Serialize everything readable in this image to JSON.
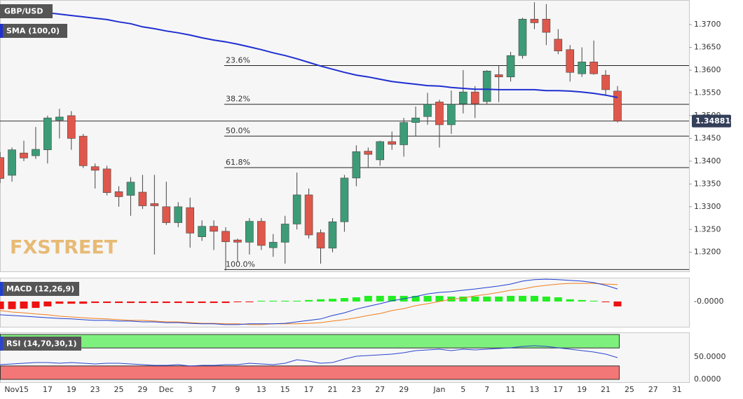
{
  "chart_data": {
    "type": "candlestick",
    "symbol": "GBP/USD",
    "watermark": "FXSTREET",
    "categories": [
      null,
      "Nov",
      "15",
      null,
      "17",
      null,
      "19",
      null,
      "23",
      null,
      "25",
      null,
      "29",
      null,
      "Dec",
      null,
      "3",
      null,
      "7",
      null,
      "9",
      null,
      "13",
      null,
      "15",
      null,
      "17",
      null,
      "21",
      null,
      "23",
      null,
      "27",
      null,
      "29",
      null,
      null,
      "Jan",
      null,
      "5",
      null,
      "7",
      null,
      "11",
      null,
      "13",
      null,
      "17",
      null,
      "19",
      null,
      "21",
      null,
      "25",
      null,
      "27",
      null,
      "31"
    ],
    "open": [
      1.3408,
      1.3369,
      1.3418,
      1.3412,
      1.3425,
      1.349,
      1.35,
      1.3455,
      1.3388,
      1.3383,
      1.3333,
      1.3325,
      1.3332,
      1.3307,
      1.33,
      1.3265,
      1.3298,
      1.3234,
      1.3257,
      1.3246,
      1.3227,
      1.3222,
      1.3268,
      1.321,
      1.3222,
      1.3262,
      1.3326,
      1.3243,
      1.3209,
      1.3267,
      1.3363,
      1.3422,
      1.3403,
      1.3443,
      1.3436,
      1.3485,
      1.3498,
      1.353,
      1.348,
      1.3526,
      1.3552,
      1.3531,
      1.359,
      1.3585,
      1.3632,
      1.3712,
      1.3712,
      1.3668,
      1.3645,
      1.3592,
      1.3618,
      1.3589,
      1.3554,
      null,
      null,
      null,
      null,
      null
    ],
    "high": [
      1.342,
      1.343,
      1.3445,
      1.3475,
      1.35,
      1.3515,
      1.351,
      1.346,
      1.3395,
      1.339,
      1.3345,
      1.3365,
      1.337,
      1.337,
      1.3355,
      1.331,
      1.332,
      1.327,
      1.327,
      1.3255,
      1.323,
      1.3275,
      1.3275,
      1.324,
      1.328,
      1.3375,
      1.334,
      1.325,
      1.3275,
      1.337,
      1.3435,
      1.343,
      1.3445,
      1.3465,
      1.3495,
      1.352,
      1.355,
      1.3535,
      1.3555,
      1.36,
      1.3565,
      1.36,
      1.361,
      1.364,
      1.3715,
      1.3749,
      1.3745,
      1.369,
      1.3655,
      1.365,
      1.3665,
      1.36,
      1.3565,
      null,
      null,
      null,
      null,
      null
    ],
    "low": [
      1.3352,
      1.3355,
      1.34,
      1.3405,
      1.3395,
      1.345,
      1.3425,
      1.3385,
      1.334,
      1.3325,
      1.33,
      1.328,
      1.3295,
      1.3195,
      1.326,
      1.3255,
      1.321,
      1.3225,
      1.3205,
      1.316,
      1.318,
      1.3195,
      1.3205,
      1.319,
      1.3175,
      1.325,
      1.323,
      1.3175,
      1.32,
      1.3245,
      1.3345,
      1.3385,
      1.339,
      1.3425,
      1.341,
      1.3455,
      1.348,
      1.343,
      1.346,
      1.3505,
      1.3495,
      1.3525,
      1.353,
      1.3575,
      1.3625,
      1.369,
      1.3655,
      1.3635,
      1.3575,
      1.3585,
      1.359,
      1.3545,
      1.3485,
      null,
      null,
      null,
      null,
      null
    ],
    "close": [
      1.3362,
      1.3425,
      1.3407,
      1.3426,
      1.3495,
      1.3497,
      1.345,
      1.339,
      1.338,
      1.3331,
      1.3322,
      1.3354,
      1.3302,
      1.3302,
      1.3265,
      1.33,
      1.3242,
      1.3257,
      1.3246,
      1.3223,
      1.3222,
      1.3268,
      1.3215,
      1.3222,
      1.3262,
      1.3326,
      1.3238,
      1.3209,
      1.3267,
      1.3363,
      1.3421,
      1.3415,
      1.3443,
      1.3437,
      1.3485,
      1.3495,
      1.3525,
      1.348,
      1.3525,
      1.3552,
      1.3526,
      1.3598,
      1.3585,
      1.3632,
      1.3712,
      1.3704,
      1.3683,
      1.3642,
      1.3595,
      1.3618,
      1.3592,
      1.3557,
      1.34881,
      null,
      null,
      null,
      null,
      null
    ],
    "up_color": "#3d9c78",
    "down_color": "#df574b",
    "sma": {
      "name": "SMA (100,0)",
      "color": "#1f2fd0",
      "values": [
        1.3743,
        1.3738,
        1.3734,
        1.3731,
        1.3726,
        1.3723,
        1.372,
        1.3717,
        1.3714,
        1.3711,
        1.3706,
        1.3702,
        1.3695,
        1.3691,
        1.3686,
        1.3682,
        1.3677,
        1.3671,
        1.3666,
        1.3662,
        1.3657,
        1.3651,
        1.3645,
        1.3638,
        1.3632,
        1.3625,
        1.3617,
        1.3609,
        1.3602,
        1.3595,
        1.3589,
        1.3585,
        1.358,
        1.3575,
        1.3572,
        1.3569,
        1.3566,
        1.3565,
        1.3562,
        1.356,
        1.3558,
        1.3558,
        1.3557,
        1.3557,
        1.3557,
        1.3557,
        1.3555,
        1.3555,
        1.3554,
        1.3552,
        1.3549,
        1.3545,
        1.354,
        null,
        null,
        null,
        null,
        null
      ]
    },
    "fib_levels": [
      {
        "label": "23.6%",
        "value": 1.361
      },
      {
        "label": "38.2%",
        "value": 1.3525
      },
      {
        "label": "50.0%",
        "value": 1.3455
      },
      {
        "label": "61.8%",
        "value": 1.3386
      },
      {
        "label": "100.0%",
        "value": 1.3162
      }
    ],
    "last_price": {
      "value": 1.34881,
      "label": "1.348810"
    },
    "ylim": [
      1.3158,
      1.3754
    ],
    "yticks": [
      {
        "value": 1.32,
        "label": "1.3200"
      },
      {
        "value": 1.325,
        "label": "1.3250"
      },
      {
        "value": 1.33,
        "label": "1.3300"
      },
      {
        "value": 1.335,
        "label": "1.3350"
      },
      {
        "value": 1.34,
        "label": "1.3400"
      },
      {
        "value": 1.345,
        "label": "1.3450"
      },
      {
        "value": 1.35,
        "label": "1.3500"
      },
      {
        "value": 1.355,
        "label": "1.3550"
      },
      {
        "value": 1.36,
        "label": "1.3600"
      },
      {
        "value": 1.365,
        "label": "1.3650"
      },
      {
        "value": 1.37,
        "label": "1.3700"
      }
    ],
    "macd": {
      "name": "MACD (12,26,9)",
      "ylim": [
        -0.0103,
        0.0097
      ],
      "yticks": [
        {
          "value": 0,
          "label": "-0.0000"
        }
      ],
      "line": {
        "color": "#1f3fd0",
        "values": [
          -0.0054,
          -0.0057,
          -0.006,
          -0.0063,
          -0.0066,
          -0.0069,
          -0.0071,
          -0.0074,
          -0.0077,
          -0.0077,
          -0.008,
          -0.008,
          -0.0083,
          -0.0083,
          -0.0086,
          -0.0086,
          -0.0089,
          -0.0091,
          -0.0091,
          -0.0094,
          -0.0094,
          -0.0091,
          -0.0091,
          -0.0091,
          -0.0089,
          -0.0083,
          -0.0077,
          -0.0071,
          -0.0057,
          -0.0046,
          -0.0031,
          -0.002,
          -0.0009,
          0.0003,
          0.0011,
          0.002,
          0.0031,
          0.0037,
          0.004,
          0.0046,
          0.0051,
          0.0057,
          0.0063,
          0.0071,
          0.0083,
          0.0089,
          0.0091,
          0.0089,
          0.0086,
          0.0083,
          0.0077,
          0.0066,
          0.0051,
          null,
          null,
          null,
          null,
          null
        ]
      },
      "signal": {
        "color": "#f07f1e",
        "values": [
          -0.0037,
          -0.0043,
          -0.0046,
          -0.0051,
          -0.0054,
          -0.006,
          -0.0063,
          -0.0066,
          -0.0069,
          -0.0071,
          -0.0074,
          -0.0077,
          -0.0077,
          -0.008,
          -0.0083,
          -0.0083,
          -0.0086,
          -0.0089,
          -0.0089,
          -0.0091,
          -0.0091,
          -0.0094,
          -0.0094,
          -0.0091,
          -0.0091,
          -0.0091,
          -0.0089,
          -0.0086,
          -0.008,
          -0.0074,
          -0.0066,
          -0.0057,
          -0.0049,
          -0.0037,
          -0.0029,
          -0.0017,
          -0.0009,
          0,
          0.0009,
          0.0014,
          0.0023,
          0.0029,
          0.0037,
          0.0046,
          0.0051,
          0.006,
          0.0066,
          0.0071,
          0.0074,
          0.0074,
          0.0074,
          0.0071,
          0.0069,
          null,
          null,
          null,
          null,
          null
        ]
      },
      "histogram": {
        "up_color": "#22ee22",
        "down_color": "#ee1111",
        "values": [
          -0.0031,
          -0.0031,
          -0.0029,
          -0.0026,
          -0.002,
          -0.0009,
          -0.0009,
          -0.0009,
          -0.0006,
          -0.0006,
          -0.0006,
          -0.0006,
          -0.0006,
          -0.0006,
          -0.0006,
          -0.0006,
          -0.0006,
          -0.0006,
          -0.0006,
          -0.0006,
          -0.0003,
          -0.0003,
          0.0003,
          0.0003,
          0.0003,
          0.0003,
          0.0006,
          0.0009,
          0.0011,
          0.0014,
          0.0017,
          0.0023,
          0.0023,
          0.0023,
          0.0023,
          0.0023,
          0.0023,
          0.0023,
          0.002,
          0.002,
          0.002,
          0.002,
          0.002,
          0.0023,
          0.0023,
          0.0023,
          0.002,
          0.0017,
          0.0009,
          0.0006,
          0.0003,
          -0.0003,
          -0.002,
          null,
          null,
          null,
          null,
          null
        ]
      }
    },
    "rsi": {
      "name": "RSI (14,70,30,1)",
      "color": "#2a44d0",
      "overbought": 70,
      "oversold": 30,
      "top": 100,
      "bottom": 0,
      "overbought_color": "#7ef07e",
      "oversold_color": "#f47777",
      "ylim": [
        -6.2,
        104.7
      ],
      "yticks": [
        {
          "value": 0,
          "label": "0.0000"
        },
        {
          "value": 50,
          "label": "50.0000"
        }
      ],
      "values": [
        32.8,
        34.4,
        35.9,
        37.5,
        37.5,
        35.9,
        37.5,
        35.9,
        34.4,
        35.9,
        35.9,
        34.4,
        32.8,
        31.3,
        31.3,
        32.8,
        29.7,
        31.3,
        31.3,
        32.8,
        32.8,
        35.9,
        34.4,
        32.8,
        35.9,
        43.8,
        40.6,
        35.9,
        37.5,
        45.3,
        51.6,
        53.1,
        54.7,
        56.3,
        59.4,
        64.1,
        65.6,
        67.2,
        64.1,
        67.2,
        65.6,
        67.2,
        68.8,
        70.3,
        73.4,
        75.0,
        73.4,
        70.3,
        67.2,
        64.1,
        60.9,
        56.3,
        48.4,
        null,
        null,
        null,
        null,
        null
      ]
    }
  }
}
